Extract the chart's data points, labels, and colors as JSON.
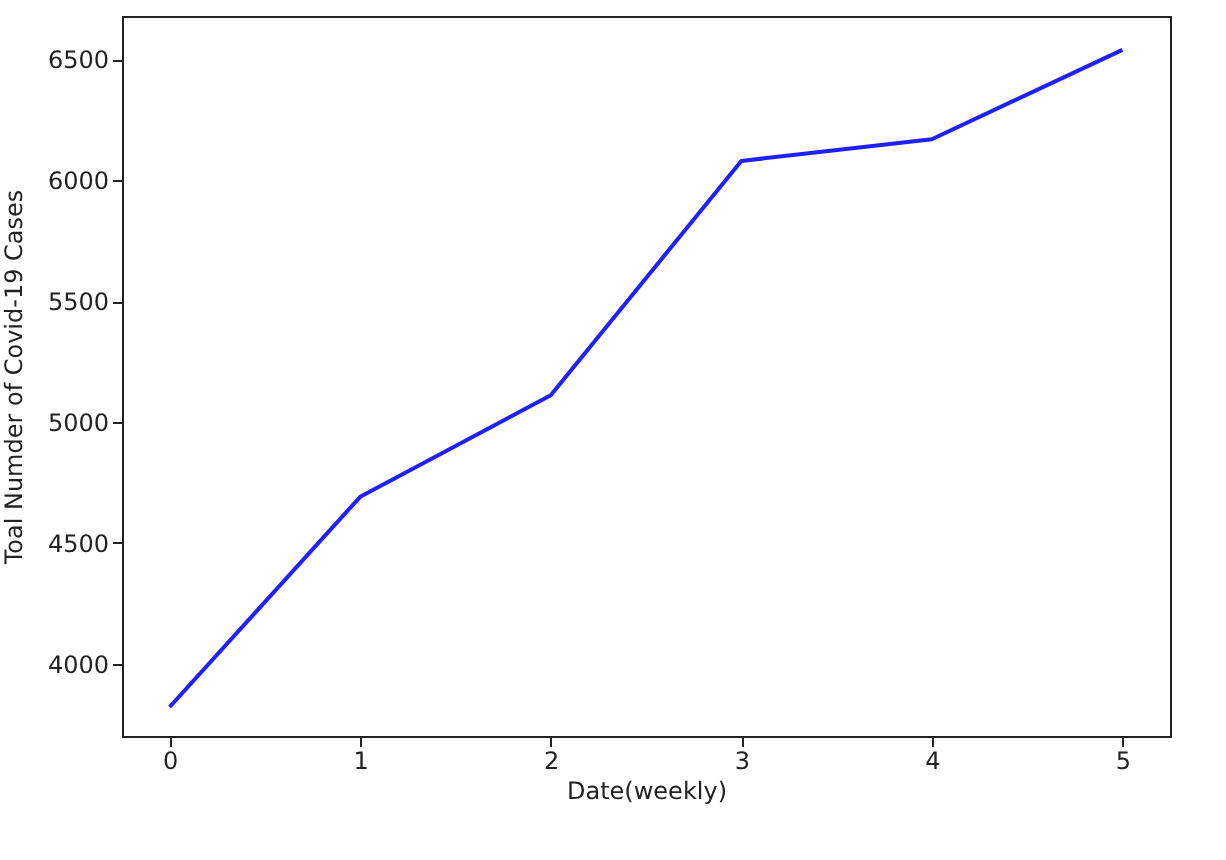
{
  "chart_data": {
    "type": "line",
    "xlabel": "Date(weekly)",
    "ylabel": "Toal Numder of Covid-19 Cases",
    "x": [
      0,
      1,
      2,
      3,
      4,
      5
    ],
    "series": [
      {
        "color": "#1f1fff",
        "values": [
          3820,
          4690,
          5110,
          6080,
          6170,
          6540
        ]
      }
    ],
    "xlim": [
      -0.25,
      5.25
    ],
    "ylim": [
      3700,
      6680
    ],
    "xticks": [
      0,
      1,
      2,
      3,
      4,
      5
    ],
    "yticks": [
      4000,
      4500,
      5000,
      5500,
      6000,
      6500
    ],
    "grid": false,
    "legend": false,
    "marker": "none",
    "line_style": "solid"
  }
}
